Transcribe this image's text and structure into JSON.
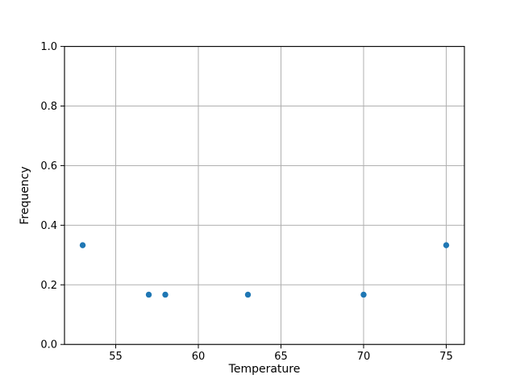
{
  "chart_data": {
    "type": "scatter",
    "title": "",
    "xlabel": "Temperature",
    "ylabel": "Frequency",
    "x": [
      53,
      57,
      58,
      63,
      70,
      75
    ],
    "y": [
      0.333,
      0.167,
      0.167,
      0.167,
      0.167,
      0.333
    ],
    "xlim": [
      51.9,
      76.1
    ],
    "ylim": [
      0.0,
      1.0
    ],
    "xticks": [
      {
        "value": 55,
        "label": "55"
      },
      {
        "value": 60,
        "label": "60"
      },
      {
        "value": 65,
        "label": "65"
      },
      {
        "value": 70,
        "label": "70"
      },
      {
        "value": 75,
        "label": "75"
      }
    ],
    "yticks": [
      {
        "value": 0.0,
        "label": "0.0"
      },
      {
        "value": 0.2,
        "label": "0.2"
      },
      {
        "value": 0.4,
        "label": "0.4"
      },
      {
        "value": 0.6,
        "label": "0.6"
      },
      {
        "value": 0.8,
        "label": "0.8"
      },
      {
        "value": 1.0,
        "label": "1.0"
      }
    ],
    "grid": true,
    "legend_position": "none",
    "marker_color": "#1f77b4",
    "grid_color": "#b0b0b0",
    "spine_color": "#000000",
    "background_color": "#ffffff"
  }
}
